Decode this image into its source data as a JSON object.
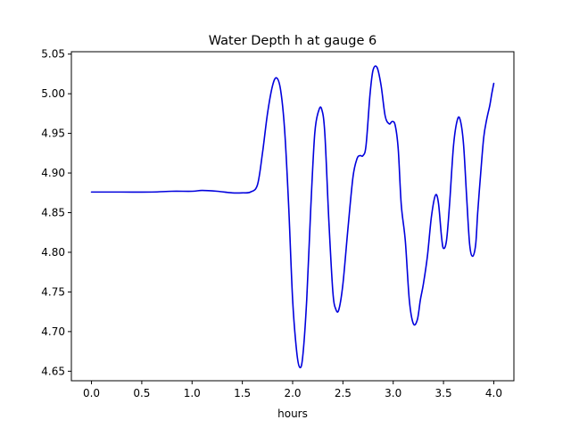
{
  "chart_data": {
    "type": "line",
    "title": "Water Depth h at gauge 6",
    "xlabel": "hours",
    "ylabel": "",
    "xlim": [
      -0.2,
      4.2
    ],
    "ylim": [
      4.638,
      5.053
    ],
    "xticks": [
      0.0,
      0.5,
      1.0,
      1.5,
      2.0,
      2.5,
      3.0,
      3.5,
      4.0
    ],
    "xtick_labels": [
      "0.0",
      "0.5",
      "1.0",
      "1.5",
      "2.0",
      "2.5",
      "3.0",
      "3.5",
      "4.0"
    ],
    "yticks": [
      4.65,
      4.7,
      4.75,
      4.8,
      4.85,
      4.9,
      4.95,
      5.0,
      5.05
    ],
    "ytick_labels": [
      "4.65",
      "4.70",
      "4.75",
      "4.80",
      "4.85",
      "4.90",
      "4.95",
      "5.00",
      "5.05"
    ],
    "grid": false,
    "legend": "none",
    "series": [
      {
        "color": "#0000dd",
        "x": [
          0.0,
          0.3,
          0.6,
          0.8,
          1.0,
          1.1,
          1.25,
          1.4,
          1.5,
          1.58,
          1.65,
          1.7,
          1.75,
          1.8,
          1.84,
          1.88,
          1.92,
          1.96,
          2.0,
          2.04,
          2.07,
          2.1,
          2.14,
          2.18,
          2.22,
          2.26,
          2.29,
          2.32,
          2.36,
          2.4,
          2.43,
          2.46,
          2.5,
          2.55,
          2.6,
          2.64,
          2.67,
          2.7,
          2.73,
          2.77,
          2.8,
          2.84,
          2.88,
          2.92,
          2.96,
          2.99,
          3.02,
          3.05,
          3.08,
          3.12,
          3.16,
          3.2,
          3.24,
          3.27,
          3.3,
          3.34,
          3.38,
          3.42,
          3.45,
          3.48,
          3.5,
          3.53,
          3.56,
          3.6,
          3.64,
          3.67,
          3.7,
          3.73,
          3.76,
          3.79,
          3.82,
          3.84,
          3.87,
          3.9,
          3.93,
          3.96,
          3.98,
          4.0
        ],
        "y": [
          4.876,
          4.876,
          4.876,
          4.877,
          4.877,
          4.878,
          4.877,
          4.875,
          4.875,
          4.876,
          4.885,
          4.925,
          4.975,
          5.01,
          5.02,
          5.005,
          4.955,
          4.86,
          4.74,
          4.675,
          4.655,
          4.668,
          4.74,
          4.855,
          4.95,
          4.979,
          4.98,
          4.95,
          4.84,
          4.75,
          4.728,
          4.728,
          4.76,
          4.83,
          4.895,
          4.918,
          4.922,
          4.922,
          4.935,
          5.0,
          5.03,
          5.033,
          5.01,
          4.972,
          4.962,
          4.965,
          4.96,
          4.93,
          4.86,
          4.815,
          4.74,
          4.71,
          4.715,
          4.74,
          4.76,
          4.795,
          4.845,
          4.872,
          4.862,
          4.82,
          4.805,
          4.815,
          4.86,
          4.935,
          4.968,
          4.965,
          4.935,
          4.87,
          4.81,
          4.795,
          4.81,
          4.85,
          4.9,
          4.945,
          4.968,
          4.985,
          5.0,
          5.013
        ]
      }
    ]
  }
}
